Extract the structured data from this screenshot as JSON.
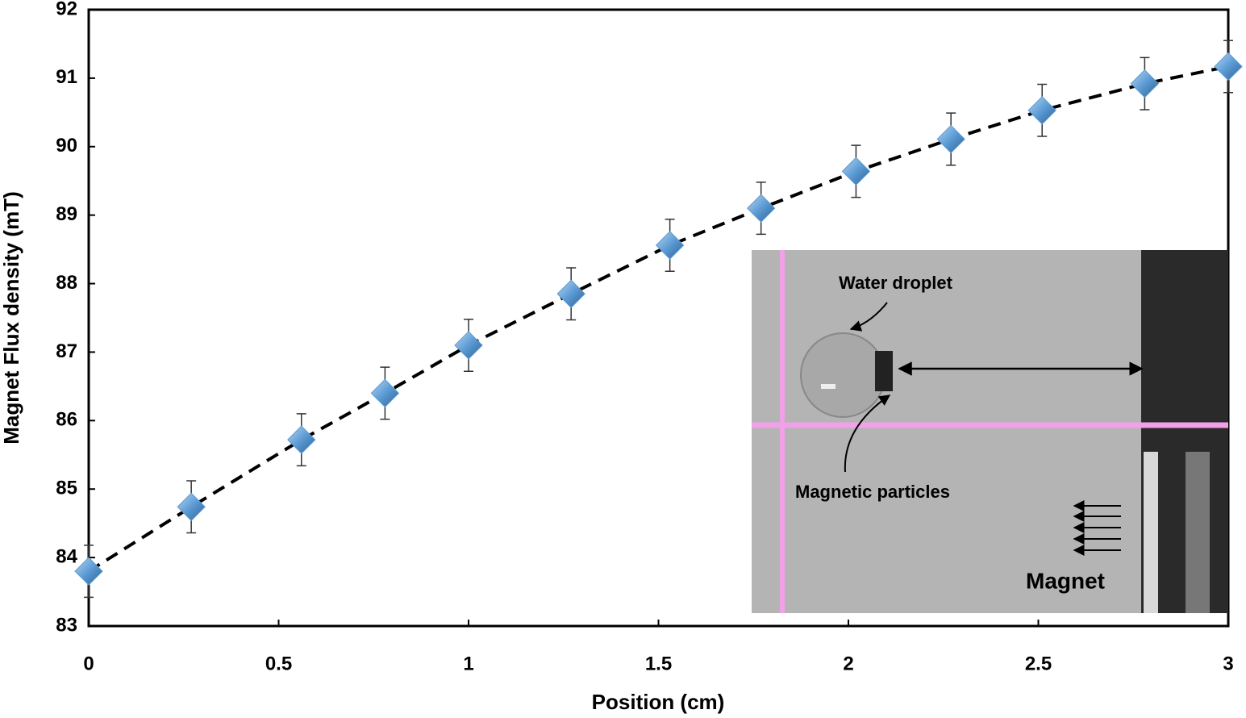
{
  "chart_data": {
    "type": "scatter",
    "xlabel": "Position (cm)",
    "ylabel": "Magnet Flux density (mT)",
    "x": [
      0,
      0.27,
      0.56,
      0.78,
      1.0,
      1.27,
      1.53,
      1.77,
      2.02,
      2.27,
      2.51,
      2.78,
      3.0
    ],
    "values": [
      83.8,
      84.74,
      85.72,
      86.4,
      87.1,
      87.85,
      88.56,
      89.1,
      89.64,
      90.11,
      90.53,
      90.92,
      91.17
    ],
    "errors": [
      0.38,
      0.38,
      0.38,
      0.38,
      0.38,
      0.38,
      0.38,
      0.38,
      0.38,
      0.38,
      0.38,
      0.38,
      0.38
    ],
    "color": "#5b9bd5",
    "line_color": "#000000",
    "xlim": [
      0,
      3
    ],
    "xticks": [
      0,
      0.5,
      1,
      1.5,
      2,
      2.5,
      3
    ],
    "ylim": [
      83,
      92
    ],
    "yticks": [
      83,
      84,
      85,
      86,
      87,
      88,
      89,
      90,
      91,
      92
    ],
    "annotations": [
      "Water droplet",
      "Magnetic particles",
      "Magnet"
    ]
  }
}
